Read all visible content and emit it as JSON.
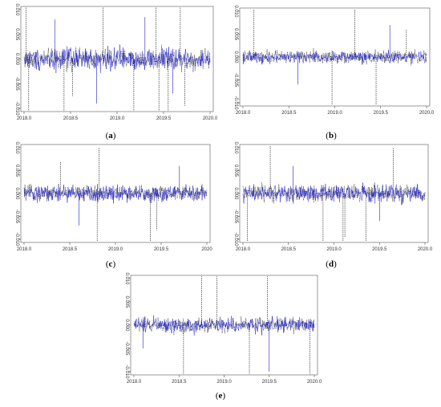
{
  "figure": {
    "captions": [
      "a",
      "b",
      "c",
      "d",
      "e"
    ]
  },
  "colors": {
    "series_black": "#111111",
    "series_blue": "#1f1fcc",
    "axis": "#555555"
  },
  "chart_data": [
    {
      "id": "a",
      "type": "line",
      "xlim": [
        2018.0,
        2020.0
      ],
      "ylim": [
        -0.01,
        0.01
      ],
      "xticks": [
        2018.0,
        2018.5,
        2019.0,
        2019.5,
        2020.0
      ],
      "xtick_labels": [
        "2018.0",
        "2018.5",
        "2019.0",
        "2019.5",
        "2020.0"
      ],
      "yticks": [
        -0.01,
        -0.005,
        0.0,
        0.005,
        0.01
      ],
      "ytick_labels": [
        "-0.010",
        "-0.005",
        "0.000",
        "0.005",
        "0.010"
      ],
      "series": [
        {
          "color": "#111111",
          "style": "dashed",
          "noise": 0.001
        },
        {
          "color": "#1f1fcc",
          "style": "solid",
          "noise": 0.0011
        }
      ],
      "spikes_black": [
        [
          2018.02,
          0.0105
        ],
        [
          2018.05,
          -0.0105
        ],
        [
          2018.43,
          -0.0105
        ],
        [
          2018.52,
          -0.0075
        ],
        [
          2018.85,
          0.0105
        ],
        [
          2019.18,
          -0.0105
        ],
        [
          2019.42,
          0.0105
        ],
        [
          2019.45,
          -0.0105
        ],
        [
          2019.55,
          -0.0105
        ],
        [
          2019.68,
          0.0105
        ],
        [
          2019.73,
          -0.0095
        ]
      ],
      "spikes_blue": [
        [
          2018.33,
          0.008
        ],
        [
          2018.78,
          -0.009
        ],
        [
          2019.3,
          0.0085
        ],
        [
          2019.6,
          -0.007
        ]
      ]
    },
    {
      "id": "b",
      "type": "line",
      "xlim": [
        2018.0,
        2020.0
      ],
      "ylim": [
        -0.01,
        0.01
      ],
      "xticks": [
        2018.0,
        2018.5,
        2019.0,
        2019.5,
        2020.0
      ],
      "xtick_labels": [
        "2018.0",
        "2018.5",
        "2019.0",
        "2019.5",
        "2020.0"
      ],
      "yticks": [
        -0.01,
        -0.005,
        0.0,
        0.005,
        0.01
      ],
      "ytick_labels": [
        "-0.010",
        "-0.005",
        "0.000",
        "0.005",
        "0.010"
      ],
      "series": [
        {
          "color": "#111111",
          "style": "dashed",
          "noise": 0.0007
        },
        {
          "color": "#1f1fcc",
          "style": "solid",
          "noise": 0.0006
        }
      ],
      "spikes_black": [
        [
          2018.12,
          0.0105
        ],
        [
          2018.97,
          -0.0105
        ],
        [
          2019.22,
          0.0105
        ],
        [
          2019.45,
          -0.0105
        ],
        [
          2019.78,
          0.006
        ]
      ],
      "spikes_blue": [
        [
          2018.6,
          -0.006
        ],
        [
          2019.6,
          0.007
        ]
      ]
    },
    {
      "id": "c",
      "type": "line",
      "xlim": [
        2018.0,
        2020.0
      ],
      "ylim": [
        -0.01,
        0.01
      ],
      "xticks": [
        2018.0,
        2018.5,
        2019.0,
        2019.5,
        2020.0
      ],
      "xtick_labels": [
        "2018.0",
        "2018.5",
        "2019.0",
        "2019.5",
        "2020"
      ],
      "yticks": [
        -0.01,
        -0.005,
        0.0,
        0.005,
        0.01
      ],
      "ytick_labels": [
        "-0.010",
        "-0.005",
        "0.000",
        "0.005",
        "0.010"
      ],
      "series": [
        {
          "color": "#111111",
          "style": "dashed",
          "noise": 0.0008
        },
        {
          "color": "#1f1fcc",
          "style": "solid",
          "noise": 0.0009
        }
      ],
      "spikes_black": [
        [
          2018.8,
          -0.0105
        ],
        [
          2018.82,
          0.01
        ],
        [
          2019.38,
          -0.0105
        ],
        [
          2019.45,
          -0.008
        ],
        [
          2018.4,
          0.007
        ]
      ],
      "spikes_blue": [
        [
          2018.6,
          -0.007
        ],
        [
          2019.7,
          0.006
        ]
      ]
    },
    {
      "id": "d",
      "type": "line",
      "xlim": [
        2018.0,
        2020.0
      ],
      "ylim": [
        -0.01,
        0.01
      ],
      "xticks": [
        2018.0,
        2018.5,
        2019.0,
        2019.5,
        2020.0
      ],
      "xtick_labels": [
        "2018.0",
        "2018.5",
        "2019.0",
        "2019.5",
        "2020.0"
      ],
      "yticks": [
        -0.01,
        -0.005,
        0.0,
        0.005,
        0.01
      ],
      "ytick_labels": [
        "-0.010",
        "-0.005",
        "0.000",
        "0.005",
        "0.010"
      ],
      "series": [
        {
          "color": "#111111",
          "style": "dashed",
          "noise": 0.0009
        },
        {
          "color": "#1f1fcc",
          "style": "solid",
          "noise": 0.0009
        }
      ],
      "spikes_black": [
        [
          2018.05,
          -0.0105
        ],
        [
          2018.3,
          0.0105
        ],
        [
          2018.88,
          -0.0105
        ],
        [
          2019.1,
          -0.0105
        ],
        [
          2019.12,
          -0.0095
        ],
        [
          2019.35,
          -0.0105
        ],
        [
          2019.65,
          0.01
        ]
      ],
      "spikes_blue": [
        [
          2018.55,
          0.006
        ],
        [
          2019.5,
          -0.006
        ]
      ]
    },
    {
      "id": "e",
      "type": "line",
      "xlim": [
        2018.0,
        2020.0
      ],
      "ylim": [
        -0.01,
        0.01
      ],
      "xticks": [
        2018.0,
        2018.5,
        2019.0,
        2019.5,
        2020.0
      ],
      "xtick_labels": [
        "2018.0",
        "2018.5",
        "2019.0",
        "2019.5",
        "2020.0"
      ],
      "yticks": [
        -0.01,
        -0.005,
        0.0,
        0.005,
        0.01
      ],
      "ytick_labels": [
        "-0.010",
        "-0.005",
        "0.000",
        "0.005",
        "0.010"
      ],
      "series": [
        {
          "color": "#111111",
          "style": "dashed",
          "noise": 0.0008
        },
        {
          "color": "#1f1fcc",
          "style": "solid",
          "noise": 0.0008
        }
      ],
      "spikes_black": [
        [
          2018.55,
          -0.0105
        ],
        [
          2018.75,
          0.0105
        ],
        [
          2018.92,
          0.0105
        ],
        [
          2019.28,
          -0.0105
        ],
        [
          2019.48,
          0.0105
        ],
        [
          2019.95,
          -0.0105
        ]
      ],
      "spikes_blue": [
        [
          2018.1,
          -0.005
        ],
        [
          2019.5,
          -0.01
        ]
      ]
    }
  ]
}
